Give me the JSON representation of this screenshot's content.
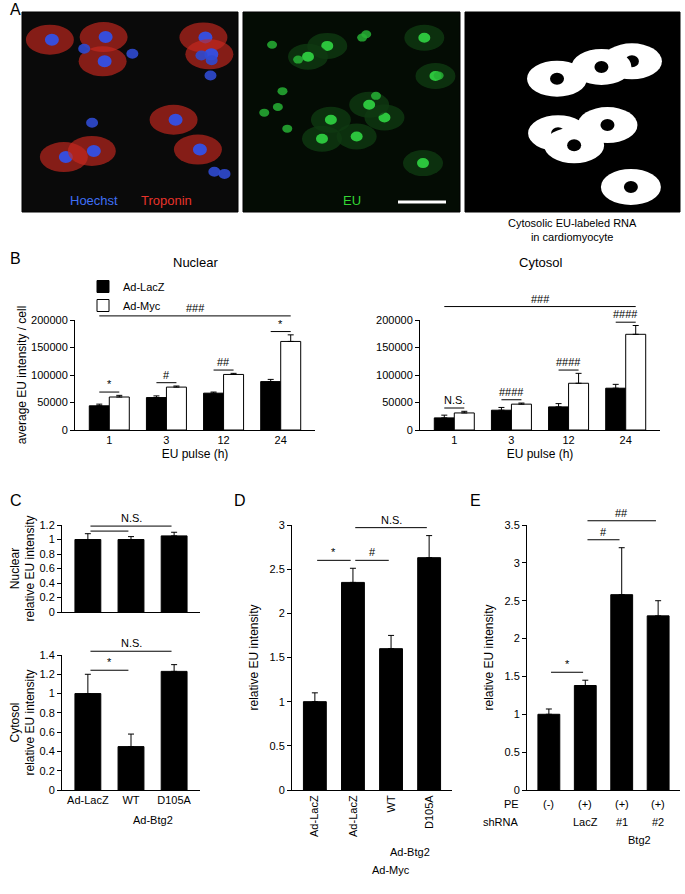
{
  "panel_labels": [
    "A",
    "B",
    "C",
    "D",
    "E"
  ],
  "panel_a": {
    "images": [
      {
        "labels": [
          {
            "text": "Hoechst",
            "color": "#3f6ff5"
          },
          {
            "text": "Troponin",
            "color": "#e8332a"
          }
        ]
      },
      {
        "labels": [
          {
            "text": "EU",
            "color": "#33d633"
          }
        ]
      },
      {
        "caption": [
          "Cytosolic EU-labeled RNA",
          "in cardiomyocyte"
        ]
      }
    ]
  },
  "chart_data": [
    {
      "type": "bar",
      "title": "Nuclear",
      "y_label": "average EU intensity / cell",
      "x_label": "EU pulse (h)",
      "categories": [
        "1",
        "3",
        "12",
        "24"
      ],
      "series": [
        {
          "name": "Ad-LacZ",
          "color": "#000000",
          "values": [
            44000,
            59000,
            67000,
            88000
          ],
          "errors": [
            3000,
            3000,
            2000,
            4000
          ]
        },
        {
          "name": "Ad-Myc",
          "color": "#ffffff",
          "values": [
            60000,
            78000,
            101000,
            161000
          ],
          "errors": [
            3000,
            2000,
            2000,
            12000
          ]
        }
      ],
      "ylim": [
        0,
        200000
      ],
      "yticks": [
        0,
        50000,
        100000,
        150000,
        200000
      ],
      "legend": "top left",
      "significance": {
        "pairs": [
          "*",
          "#",
          "##",
          "*"
        ],
        "span": "###"
      }
    },
    {
      "type": "bar",
      "title": "Cytosol",
      "x_label": "EU pulse (h)",
      "categories": [
        "1",
        "3",
        "12",
        "24"
      ],
      "series": [
        {
          "name": "Ad-LacZ",
          "color": "#000000",
          "values": [
            22000,
            36000,
            42000,
            76000
          ],
          "errors": [
            5000,
            5000,
            6000,
            7000
          ]
        },
        {
          "name": "Ad-Myc",
          "color": "#ffffff",
          "values": [
            31000,
            47000,
            85000,
            174000
          ],
          "errors": [
            3000,
            2000,
            18000,
            16000
          ]
        }
      ],
      "ylim": [
        0,
        200000
      ],
      "yticks": [
        0,
        50000,
        100000,
        150000,
        200000
      ],
      "significance": {
        "pairs": [
          "N.S.",
          "####",
          "####",
          "####"
        ],
        "span": "###"
      }
    },
    {
      "type": "bar",
      "y_label": [
        "Nuclear",
        "relative EU intensity"
      ],
      "categories": [
        null,
        null,
        null
      ],
      "values": [
        1.0,
        1.0,
        1.05
      ],
      "errors": [
        0.08,
        0.04,
        0.05
      ],
      "color": "#000000",
      "ylim": [
        0,
        1.2
      ],
      "yticks": [
        0,
        0.2,
        0.4,
        0.6,
        0.8,
        1,
        1.2
      ],
      "significance": [
        {
          "label": "N.S.",
          "pairs": [
            [
              0,
              1
            ],
            [
              0,
              2
            ]
          ]
        }
      ]
    },
    {
      "type": "bar",
      "y_label": [
        "Cytosol",
        "relative EU intensity"
      ],
      "categories": [
        "Ad-LacZ",
        "WT",
        "D105A"
      ],
      "values": [
        1.0,
        0.45,
        1.23
      ],
      "errors": [
        0.2,
        0.13,
        0.07
      ],
      "color": "#000000",
      "ylim": [
        0,
        1.4
      ],
      "yticks": [
        0,
        0.2,
        0.4,
        0.6,
        0.8,
        1,
        1.2,
        1.4
      ],
      "groups": [
        {
          "label": "Ad-Btg2",
          "from": 1,
          "to": 2
        }
      ],
      "significance": [
        {
          "label": "*",
          "pairs": [
            [
              0,
              1
            ]
          ]
        },
        {
          "label": "N.S.",
          "pairs": [
            [
              0,
              2
            ]
          ]
        }
      ]
    },
    {
      "type": "bar",
      "y_label": "relative EU intensity",
      "categories": [
        "Ad-LacZ",
        "Ad-LacZ",
        "WT",
        "D105A"
      ],
      "values": [
        1.0,
        2.35,
        1.6,
        2.63
      ],
      "errors": [
        0.1,
        0.16,
        0.15,
        0.25
      ],
      "color": "#000000",
      "ylim": [
        0,
        3
      ],
      "yticks": [
        0,
        0.5,
        1,
        1.5,
        2,
        2.5,
        3
      ],
      "groups": [
        {
          "label": "Ad-Btg2",
          "from": 2,
          "to": 3
        },
        {
          "label": "Ad-Myc",
          "from": 1,
          "to": 3
        }
      ],
      "significance": [
        {
          "label": "*",
          "pairs": [
            [
              0,
              1
            ]
          ]
        },
        {
          "label": "#",
          "pairs": [
            [
              1,
              2
            ]
          ]
        },
        {
          "label": "N.S.",
          "pairs": [
            [
              1,
              3
            ]
          ]
        }
      ]
    },
    {
      "type": "bar",
      "y_label": "relative EU intensity",
      "categories": [
        null,
        null,
        null,
        null
      ],
      "x_rows": [
        {
          "label": "PE",
          "cells": [
            "(-)",
            "(+)",
            "(+)",
            "(+)"
          ]
        },
        {
          "label": "shRNA",
          "cells": [
            null,
            "LacZ",
            "#1",
            "#2"
          ]
        }
      ],
      "values": [
        1.0,
        1.38,
        2.58,
        2.3
      ],
      "errors": [
        0.07,
        0.07,
        0.62,
        0.2
      ],
      "color": "#000000",
      "ylim": [
        0,
        3.5
      ],
      "yticks": [
        0,
        0.5,
        1,
        1.5,
        2,
        2.5,
        3,
        3.5
      ],
      "groups": [
        {
          "label": "Btg2",
          "from": 2,
          "to": 3
        }
      ],
      "significance": [
        {
          "label": "*",
          "pairs": [
            [
              0,
              1
            ]
          ]
        },
        {
          "label": "#",
          "pairs": [
            [
              1,
              2
            ]
          ]
        },
        {
          "label": "##",
          "pairs": [
            [
              1,
              3
            ]
          ]
        }
      ]
    }
  ]
}
